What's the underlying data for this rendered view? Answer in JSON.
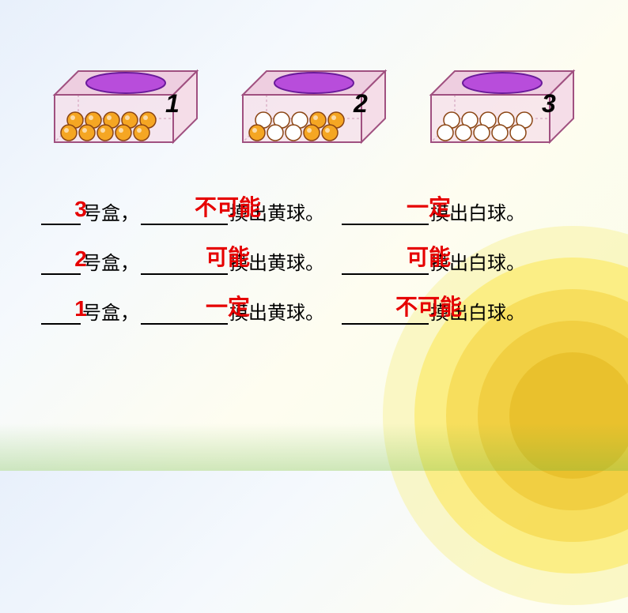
{
  "boxes": [
    {
      "label": "1",
      "balls": [
        "orange",
        "orange",
        "orange",
        "orange",
        "orange",
        "orange",
        "orange",
        "orange",
        "orange",
        "orange"
      ]
    },
    {
      "label": "2",
      "balls": [
        "white",
        "white",
        "white",
        "orange",
        "orange",
        "orange",
        "white",
        "white",
        "orange",
        "orange"
      ]
    },
    {
      "label": "3",
      "balls": [
        "white",
        "white",
        "white",
        "white",
        "white",
        "white",
        "white",
        "white",
        "white",
        "white"
      ]
    }
  ],
  "box_style": {
    "face_fill": "#f5dde8",
    "edge_stroke": "#a05080",
    "top_fill": "#eecee0",
    "hole_fill": "#b84ddb",
    "hole_stroke": "#6a1b9a",
    "label_color": "#000000",
    "label_fontsize": 32
  },
  "ball_colors": {
    "orange": "#f5a623",
    "white": "#ffffff",
    "stroke": "#8b4513"
  },
  "questions": [
    {
      "num": "3",
      "word1": "不可能",
      "mid1": "摸出黄球。",
      "word2": "一定",
      "mid2": "摸出白球。"
    },
    {
      "num": "2",
      "word1": "可能",
      "mid1": "摸出黄球。",
      "word2": "可能",
      "mid2": "摸出白球。"
    },
    {
      "num": "1",
      "word1": "一定",
      "mid1": "摸出黄球。",
      "word2": "不可能",
      "mid2": "摸出白球。"
    }
  ],
  "labels": {
    "box_suffix": "号盒，"
  },
  "bg_rings": [
    {
      "r": 240,
      "color": "#f9f3a8"
    },
    {
      "r": 200,
      "color": "#fce85c"
    },
    {
      "r": 160,
      "color": "#f5d442"
    },
    {
      "r": 120,
      "color": "#edc531"
    },
    {
      "r": 80,
      "color": "#e5b820"
    }
  ]
}
